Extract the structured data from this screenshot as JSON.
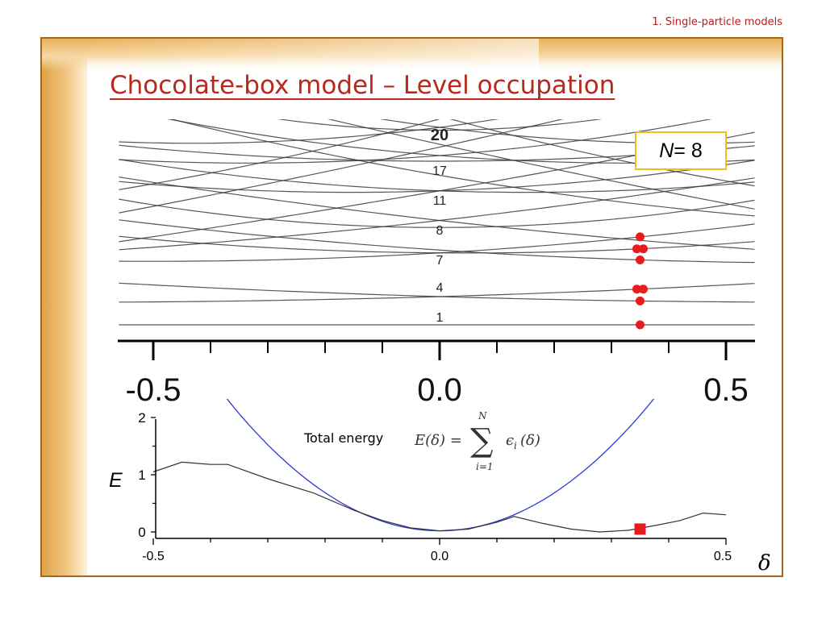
{
  "header": {
    "section": "1. Single-particle models"
  },
  "slide": {
    "title": "Chocolate-box model – Level occupation"
  },
  "n_box": {
    "var": "N",
    "rest": " = 8"
  },
  "formula": {
    "label": "Total energy",
    "lhs": "E(δ) = ",
    "sum": "∑",
    "upper": "N",
    "lower": "i=1",
    "term": "ϵ",
    "sub": "i",
    "arg": "(δ)"
  },
  "colors": {
    "levels": "#3a3a3a",
    "occupation": "#e81c1c",
    "parabola": "#2b3bd6",
    "energy": "#333333",
    "frame": "#a0691f",
    "title": "#b8281c"
  },
  "chart_data": [
    {
      "type": "line",
      "title": "",
      "xlabel": "",
      "ylabel": "",
      "xlim": [
        -0.56,
        0.55
      ],
      "x_ticks": [
        "-0.5",
        "0.0",
        "0.5"
      ],
      "shell_labels": [
        "20",
        "17",
        "11",
        "8",
        "7",
        "4",
        "1"
      ],
      "levels": [
        {
          "y0": 0.0,
          "slope": 0.0,
          "curv": 0.0
        },
        {
          "y0": 1.0,
          "slope": -0.6,
          "curv": 0.45
        },
        {
          "y0": 1.0,
          "slope": 0.6,
          "curv": 0.45
        },
        {
          "y0": 2.55,
          "slope": -0.15,
          "curv": 1.6
        },
        {
          "y0": 2.55,
          "slope": 1.2,
          "curv": 1.2
        },
        {
          "y0": 2.65,
          "slope": -1.35,
          "curv": 1.0
        },
        {
          "y0": 3.45,
          "slope": 0.0,
          "curv": 3.2
        },
        {
          "y0": 3.7,
          "slope": 2.3,
          "curv": 0.8
        },
        {
          "y0": 3.7,
          "slope": -2.3,
          "curv": 0.8
        },
        {
          "y0": 4.75,
          "slope": 0.7,
          "curv": 2.3
        },
        {
          "y0": 4.75,
          "slope": -0.7,
          "curv": 2.3
        },
        {
          "y0": 4.75,
          "slope": 3.5,
          "curv": 0.5
        },
        {
          "y0": 5.3,
          "slope": -3.5,
          "curv": 1.6
        },
        {
          "y0": 5.8,
          "slope": 0.0,
          "curv": 1.8
        },
        {
          "y0": 6.0,
          "slope": 1.6,
          "curv": 2.4
        },
        {
          "y0": 6.0,
          "slope": -1.6,
          "curv": 2.4
        },
        {
          "y0": 6.3,
          "slope": 4.5,
          "curv": 0.6
        },
        {
          "y0": 6.4,
          "slope": -4.5,
          "curv": 0.6
        },
        {
          "y0": 7.0,
          "slope": 2.6,
          "curv": 3.0
        },
        {
          "y0": 7.0,
          "slope": -2.6,
          "curv": 3.0
        },
        {
          "y0": 6.9,
          "slope": 0.0,
          "curv": 5.0
        },
        {
          "y0": 7.3,
          "slope": 5.6,
          "curv": 2.0
        },
        {
          "y0": 7.4,
          "slope": -5.6,
          "curv": 2.0
        }
      ],
      "occupation": {
        "delta": 0.35,
        "points": [
          {
            "level": 0,
            "count": 1
          },
          {
            "level": 1,
            "count": 1
          },
          {
            "level": 2,
            "count": 2
          },
          {
            "level": 3,
            "count": 2
          },
          {
            "level": 4,
            "count": 1
          },
          {
            "level": 5,
            "count": 1
          }
        ]
      }
    },
    {
      "type": "line",
      "title": "",
      "xlabel": "δ",
      "ylabel": "E",
      "xlim": [
        -0.5,
        0.5
      ],
      "ylim": [
        0,
        2
      ],
      "x_ticks": [
        "-0.5",
        "0.0",
        "0.5"
      ],
      "y_ticks": [
        "0",
        "1",
        "2"
      ],
      "series": [
        {
          "x": [
            -0.5,
            -0.45,
            -0.4,
            -0.37,
            -0.3,
            -0.22,
            -0.15,
            -0.1,
            -0.05,
            0.0,
            0.05,
            0.1,
            0.13,
            0.18,
            0.23,
            0.28,
            0.33,
            0.38,
            0.42,
            0.46,
            0.5
          ],
          "y": [
            1.05,
            1.22,
            1.18,
            1.18,
            0.93,
            0.68,
            0.38,
            0.2,
            0.07,
            0.02,
            0.05,
            0.17,
            0.27,
            0.15,
            0.05,
            0.0,
            0.03,
            0.12,
            0.2,
            0.33,
            0.3
          ]
        },
        {
          "x": [
            -0.39,
            -0.3,
            -0.2,
            -0.1,
            0.0,
            0.1,
            0.2,
            0.3,
            0.4,
            0.46
          ],
          "y": [
            2.52,
            1.52,
            0.74,
            0.24,
            0.02,
            0.22,
            0.72,
            1.5,
            2.5,
            3.0
          ]
        }
      ],
      "marker": {
        "x": 0.35,
        "y": 0.05
      }
    }
  ]
}
